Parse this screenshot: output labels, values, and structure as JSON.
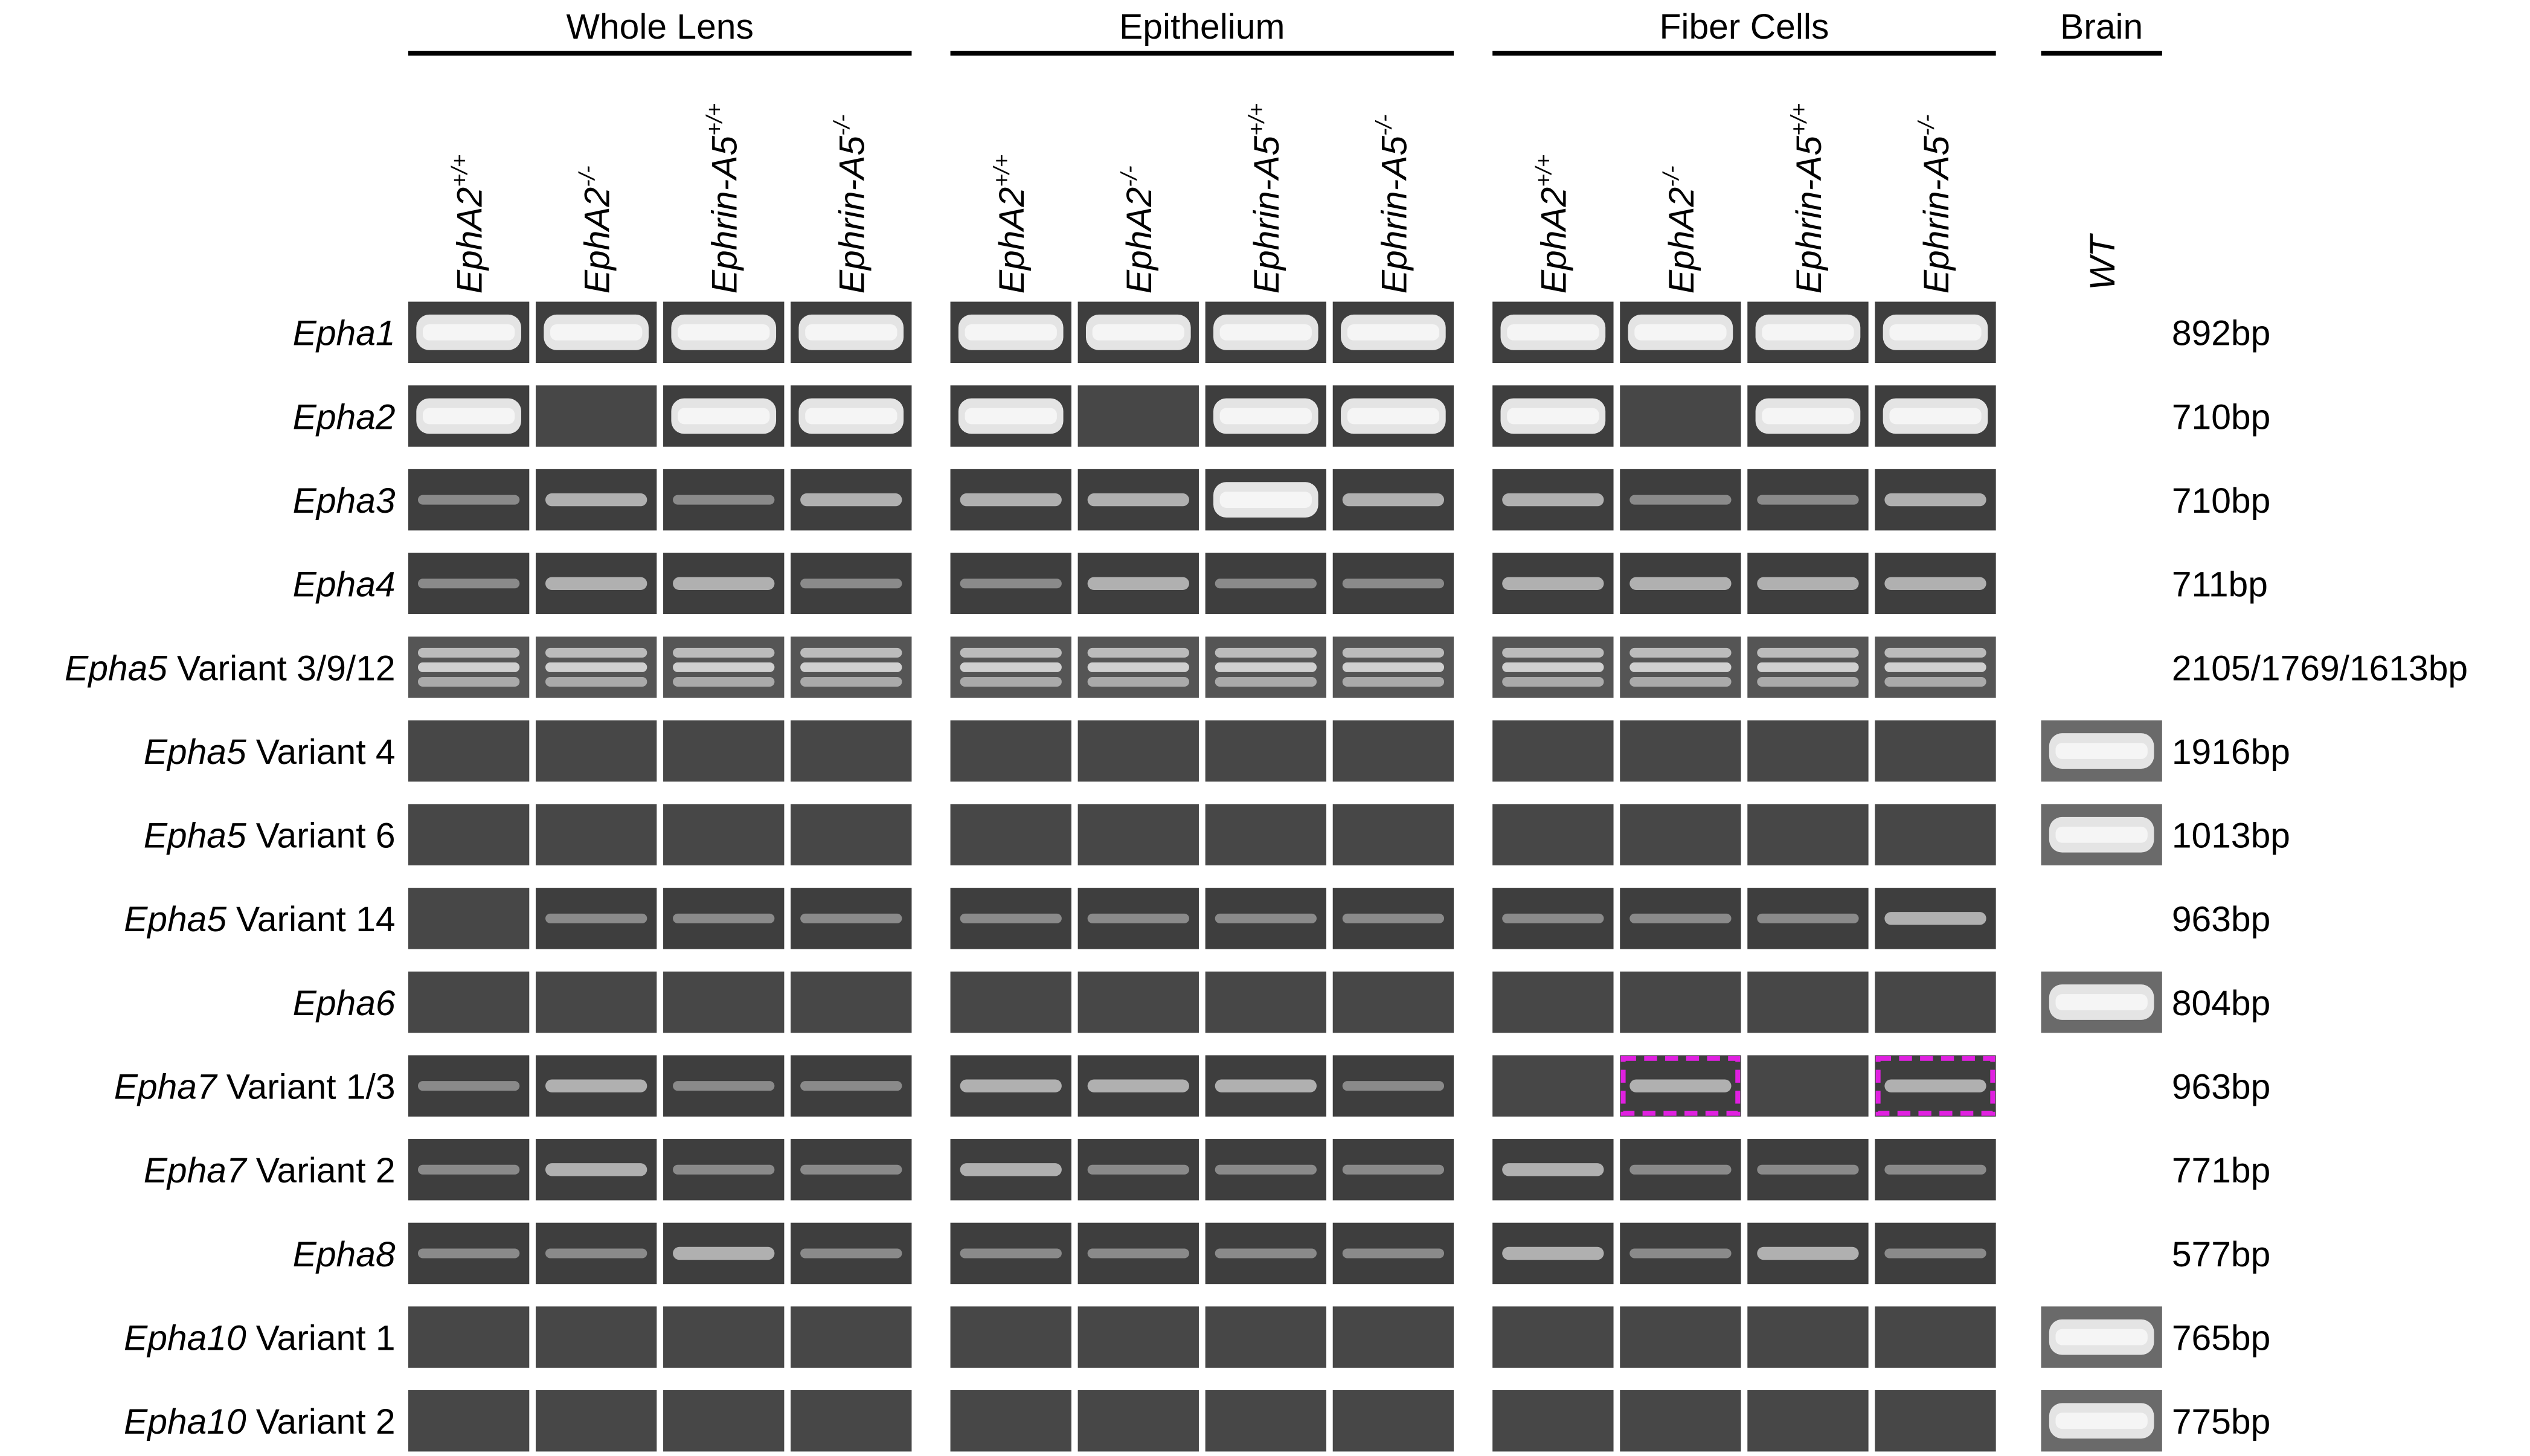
{
  "groups": [
    {
      "title": "Whole Lens",
      "lanes": [
        {
          "name": "EphA2",
          "sup": "+/+"
        },
        {
          "name": "EphA2",
          "sup": "-/-"
        },
        {
          "name": "Ephrin-A5",
          "sup": "+/+"
        },
        {
          "name": "Ephrin-A5",
          "sup": "-/-"
        }
      ]
    },
    {
      "title": "Epithelium",
      "lanes": [
        {
          "name": "EphA2",
          "sup": "+/+"
        },
        {
          "name": "EphA2",
          "sup": "-/-"
        },
        {
          "name": "Ephrin-A5",
          "sup": "+/+"
        },
        {
          "name": "Ephrin-A5",
          "sup": "-/-"
        }
      ]
    },
    {
      "title": "Fiber Cells",
      "lanes": [
        {
          "name": "EphA2",
          "sup": "+/+"
        },
        {
          "name": "EphA2",
          "sup": "-/-"
        },
        {
          "name": "Ephrin-A5",
          "sup": "+/+"
        },
        {
          "name": "Ephrin-A5",
          "sup": "-/-"
        }
      ]
    },
    {
      "title": "Brain",
      "lanes": [
        {
          "name": "WT"
        }
      ]
    }
  ],
  "rows": [
    {
      "gene": "Epha1",
      "size": "892bp"
    },
    {
      "gene": "Epha2",
      "size": "710bp"
    },
    {
      "gene": "Epha3",
      "size": "710bp"
    },
    {
      "gene": "Epha4",
      "size": "711bp"
    },
    {
      "gene": "Epha5",
      "variant": "Variant 3/9/12",
      "size": "2105/1769/1613bp"
    },
    {
      "gene": "Epha5",
      "variant": "Variant 4",
      "size": "1916bp"
    },
    {
      "gene": "Epha5",
      "variant": "Variant 6",
      "size": "1013bp"
    },
    {
      "gene": "Epha5",
      "variant": "Variant 14",
      "size": "963bp"
    },
    {
      "gene": "Epha6",
      "size": "804bp"
    },
    {
      "gene": "Epha7",
      "variant": "Variant 1/3",
      "size": "963bp"
    },
    {
      "gene": "Epha7",
      "variant": "Variant 2",
      "size": "771bp"
    },
    {
      "gene": "Epha8",
      "size": "577bp"
    },
    {
      "gene": "Epha10",
      "variant": "Variant 1",
      "size": "765bp"
    },
    {
      "gene": "Epha10",
      "variant": "Variant 2",
      "size": "775bp"
    }
  ]
}
